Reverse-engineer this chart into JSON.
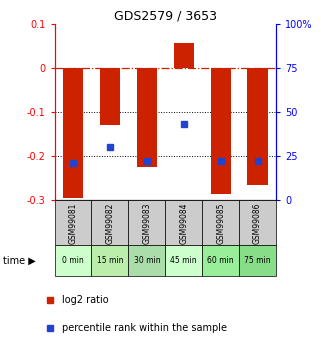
{
  "title": "GDS2579 / 3653",
  "samples": [
    "GSM99081",
    "GSM99082",
    "GSM99083",
    "GSM99084",
    "GSM99085",
    "GSM99086"
  ],
  "time_labels": [
    "0 min",
    "15 min",
    "30 min",
    "45 min",
    "60 min",
    "75 min"
  ],
  "time_colors": [
    "#ccffcc",
    "#bbeeaa",
    "#aaddaa",
    "#ccffcc",
    "#99ee99",
    "#88dd88"
  ],
  "log2_values": [
    -0.295,
    -0.13,
    -0.225,
    0.057,
    -0.285,
    -0.265
  ],
  "percentile_values_pct": [
    21,
    30,
    22,
    43,
    22,
    22
  ],
  "ylim_left": [
    -0.3,
    0.1
  ],
  "ylim_right": [
    0,
    100
  ],
  "yticks_left": [
    -0.3,
    -0.2,
    -0.1,
    0,
    0.1
  ],
  "yticks_right": [
    0,
    25,
    50,
    75,
    100
  ],
  "bar_color": "#cc2200",
  "dot_color": "#2244cc",
  "gridline_y": [
    -0.1,
    -0.2
  ],
  "hline_y": 0,
  "bar_width": 0.55,
  "label_log2": "log2 ratio",
  "label_pct": "percentile rank within the sample"
}
